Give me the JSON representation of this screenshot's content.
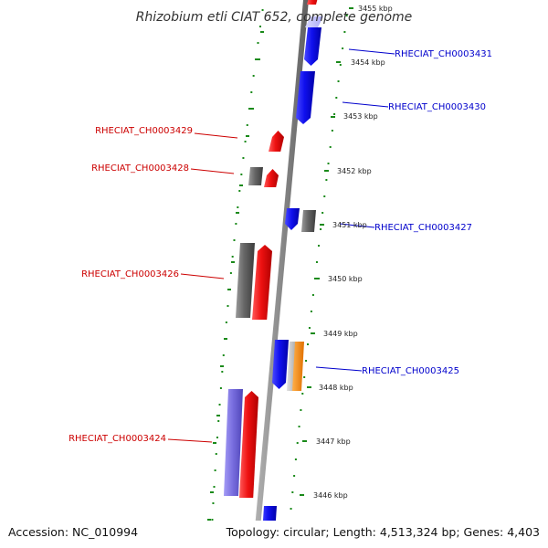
{
  "title": "Rhizobium etli CIAT 652, complete genome",
  "footer": {
    "accession": "Accession: NC_010994",
    "topology": "Topology: circular; Length: 4,513,324 bp; Genes: 4,403"
  },
  "scale_labels": [
    "3455 kbp",
    "3454 kbp",
    "3453 kbp",
    "3452 kbp",
    "3451 kbp",
    "3450 kbp",
    "3449 kbp",
    "3448 kbp",
    "3447 kbp",
    "3446 kbp"
  ],
  "gene_labels": [
    {
      "text": "RHECIAT_CH0003431",
      "strand": "plus"
    },
    {
      "text": "RHECIAT_CH0003430",
      "strand": "plus"
    },
    {
      "text": "RHECIAT_CH0003429",
      "strand": "minus"
    },
    {
      "text": "RHECIAT_CH0003428",
      "strand": "minus"
    },
    {
      "text": "RHECIAT_CH0003427",
      "strand": "plus"
    },
    {
      "text": "RHECIAT_CH0003426",
      "strand": "minus"
    },
    {
      "text": "RHECIAT_CH0003425",
      "strand": "plus"
    },
    {
      "text": "RHECIAT_CH0003424",
      "strand": "minus"
    }
  ],
  "colors": {
    "plus_label": "#0000cc",
    "minus_label": "#cc0000",
    "backbone": "#8a8a8a",
    "dots": "#1a8a1a",
    "blue": "#1010ee",
    "red": "#ee1111",
    "grey": "#666666",
    "orange": "#ff8c00",
    "light_grey": "#bdbdbd",
    "purple": "#7a6fe0"
  }
}
